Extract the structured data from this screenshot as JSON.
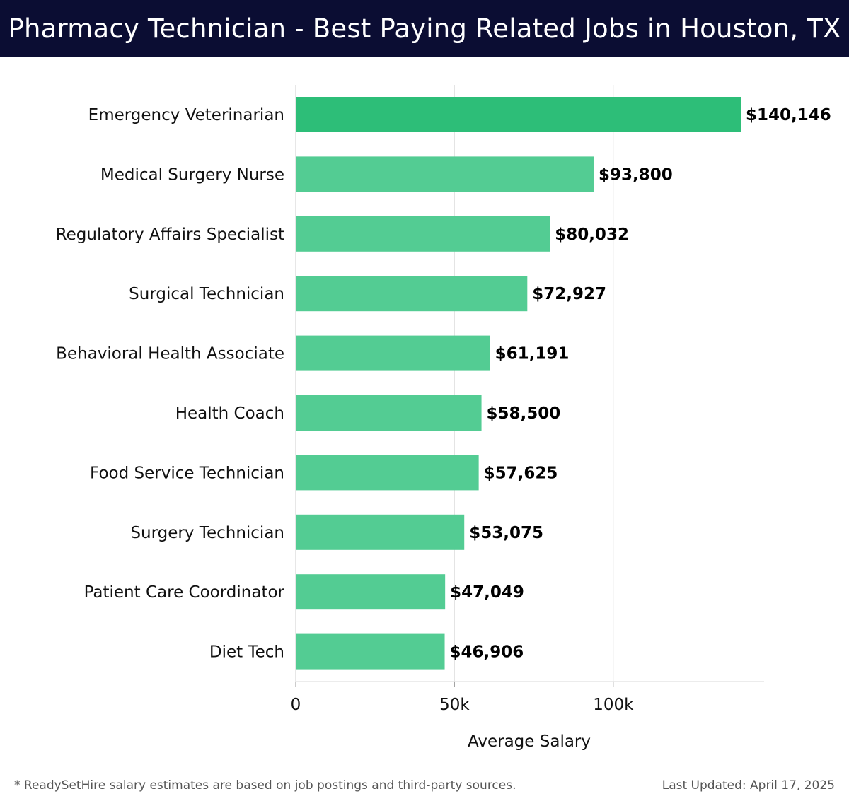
{
  "header": {
    "title": "Pharmacy Technician - Best Paying Related Jobs in Houston, TX"
  },
  "footer": {
    "note": "* ReadySetHire salary estimates are based on job postings and third-party sources.",
    "last_updated": "Last Updated: April 17, 2025"
  },
  "colors": {
    "header_bg": "#0b0d33",
    "bar_top": "#2dbe78",
    "bar": "#53cc93",
    "grid": "#e2e2e2"
  },
  "chart_data": {
    "type": "bar",
    "orientation": "horizontal",
    "categories": [
      "Emergency Veterinarian",
      "Medical Surgery Nurse",
      "Regulatory Affairs Specialist",
      "Surgical Technician",
      "Behavioral Health Associate",
      "Health Coach",
      "Food Service Technician",
      "Surgery Technician",
      "Patient Care Coordinator",
      "Diet Tech"
    ],
    "values": [
      140146,
      93800,
      80032,
      72927,
      61191,
      58500,
      57625,
      53075,
      47049,
      46906
    ],
    "value_labels": [
      "$140,146",
      "$93,800",
      "$80,032",
      "$72,927",
      "$61,191",
      "$58,500",
      "$57,625",
      "$53,075",
      "$47,049",
      "$46,906"
    ],
    "xlabel": "Average Salary",
    "ylabel": "",
    "xlim": [
      0,
      147500
    ],
    "xticks": [
      0,
      50000,
      100000
    ],
    "xtick_labels": [
      "0",
      "50k",
      "100k"
    ],
    "grid": true
  }
}
